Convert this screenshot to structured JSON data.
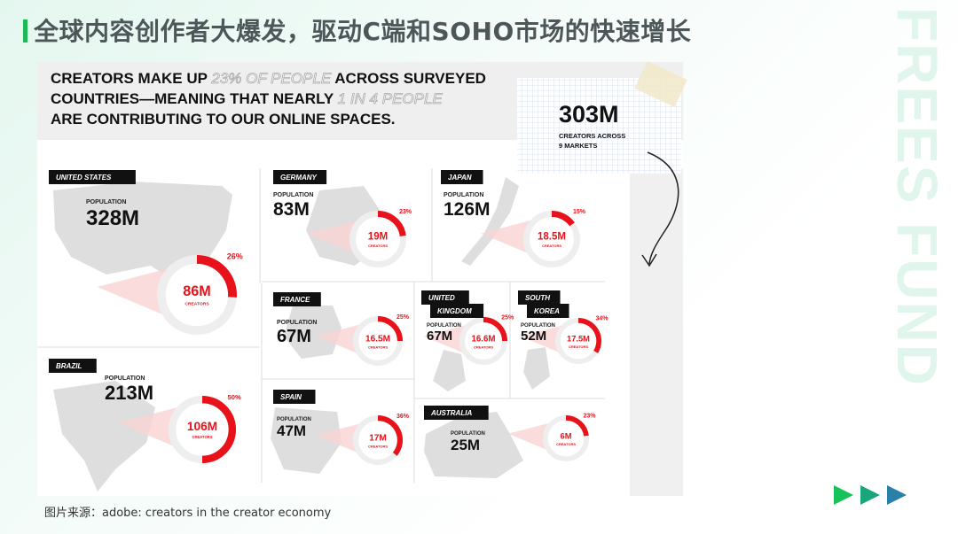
{
  "slide": {
    "title": "全球内容创作者大爆发，驱动C端和SOHO市场的快速增长",
    "watermark": "FREES FUND",
    "footer": "图片来源：adobe: creators in the creator economy",
    "colors": {
      "accent_green": "#1db954",
      "creator_red": "#e8121b",
      "arrow_colors": [
        "#17c25a",
        "#1aa57a",
        "#2a80a8"
      ]
    }
  },
  "infographic": {
    "headline": [
      [
        {
          "text": "CREATORS MAKE UP ",
          "style": "bold"
        },
        {
          "text": "23% OF PEOPLE",
          "style": "outline"
        },
        {
          "text": " ACROSS SURVEYED",
          "style": "bold"
        }
      ],
      [
        {
          "text": "COUNTRIES—MEANING THAT NEARLY ",
          "style": "bold"
        },
        {
          "text": "1 IN 4 PEOPLE",
          "style": "outline"
        }
      ],
      [
        {
          "text": "ARE CONTRIBUTING TO OUR ONLINE SPACES.",
          "style": "bold"
        }
      ]
    ],
    "note": {
      "value": "303M",
      "line1": "CREATORS ACROSS",
      "line2": "9 MARKETS"
    },
    "population_label": "POPULATION",
    "creators_label": "CREATORS",
    "countries": [
      {
        "name": [
          "UNITED STATES"
        ],
        "population": "328M",
        "creators": "86M",
        "percent": 26
      },
      {
        "name": [
          "GERMANY"
        ],
        "population": "83M",
        "creators": "19M",
        "percent": 23
      },
      {
        "name": [
          "JAPAN"
        ],
        "population": "126M",
        "creators": "18.5M",
        "percent": 15
      },
      {
        "name": [
          "FRANCE"
        ],
        "population": "67M",
        "creators": "16.5M",
        "percent": 25
      },
      {
        "name": [
          "UNITED",
          "KINGDOM"
        ],
        "population": "67M",
        "creators": "16.6M",
        "percent": 25
      },
      {
        "name": [
          "SOUTH",
          "KOREA"
        ],
        "population": "52M",
        "creators": "17.5M",
        "percent": 34
      },
      {
        "name": [
          "BRAZIL"
        ],
        "population": "213M",
        "creators": "106M",
        "percent": 50
      },
      {
        "name": [
          "SPAIN"
        ],
        "population": "47M",
        "creators": "17M",
        "percent": 36
      },
      {
        "name": [
          "AUSTRALIA"
        ],
        "population": "25M",
        "creators": "6M",
        "percent": 23
      }
    ]
  }
}
